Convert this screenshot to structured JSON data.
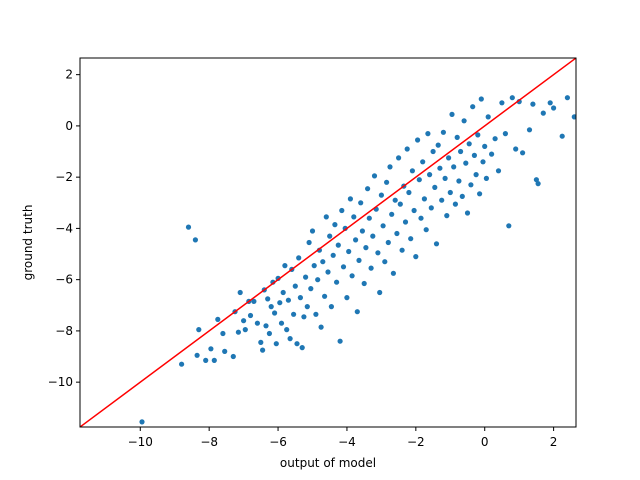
{
  "chart_data": {
    "type": "scatter",
    "title": "",
    "xlabel": "output of model",
    "ylabel": "ground truth",
    "xlim": [
      -11.75,
      2.65
    ],
    "ylim": [
      -11.75,
      2.65
    ],
    "xticks": [
      -10,
      -8,
      -6,
      -4,
      -2,
      0,
      2
    ],
    "yticks": [
      -10,
      -8,
      -6,
      -4,
      -2,
      0,
      2
    ],
    "xtick_labels": [
      "−10",
      "−8",
      "−6",
      "−4",
      "−2",
      "0",
      "2"
    ],
    "ytick_labels": [
      "−10",
      "−8",
      "−6",
      "−4",
      "−2",
      "0",
      "2"
    ],
    "grid": false,
    "legend": "none",
    "point_color": "#1f77b4",
    "line_color": "#ff0000",
    "reference_line": {
      "type": "identity",
      "from": [
        -11.75,
        -11.75
      ],
      "to": [
        2.65,
        2.65
      ]
    },
    "series": [
      {
        "points": [
          [
            -9.95,
            -11.55
          ],
          [
            -8.8,
            -9.3
          ],
          [
            -8.6,
            -3.95
          ],
          [
            -8.4,
            -4.45
          ],
          [
            -8.35,
            -8.95
          ],
          [
            -8.3,
            -7.95
          ],
          [
            -8.1,
            -9.15
          ],
          [
            -7.95,
            -8.7
          ],
          [
            -7.85,
            -9.15
          ],
          [
            -7.75,
            -7.55
          ],
          [
            -7.6,
            -8.1
          ],
          [
            -7.55,
            -8.8
          ],
          [
            -7.3,
            -9.0
          ],
          [
            -7.25,
            -7.25
          ],
          [
            -7.15,
            -8.05
          ],
          [
            -7.1,
            -6.5
          ],
          [
            -7.0,
            -7.6
          ],
          [
            -6.95,
            -7.95
          ],
          [
            -6.85,
            -6.85
          ],
          [
            -6.8,
            -7.4
          ],
          [
            -6.7,
            -6.85
          ],
          [
            -6.6,
            -7.7
          ],
          [
            -6.5,
            -8.45
          ],
          [
            -6.45,
            -8.75
          ],
          [
            -6.4,
            -6.4
          ],
          [
            -6.35,
            -7.8
          ],
          [
            -6.3,
            -6.75
          ],
          [
            -6.25,
            -8.1
          ],
          [
            -6.2,
            -7.05
          ],
          [
            -6.15,
            -6.1
          ],
          [
            -6.1,
            -7.3
          ],
          [
            -6.05,
            -8.5
          ],
          [
            -6.0,
            -5.95
          ],
          [
            -5.95,
            -6.9
          ],
          [
            -5.9,
            -7.7
          ],
          [
            -5.85,
            -6.5
          ],
          [
            -5.8,
            -5.45
          ],
          [
            -5.75,
            -7.95
          ],
          [
            -5.7,
            -6.8
          ],
          [
            -5.65,
            -8.3
          ],
          [
            -5.6,
            -5.6
          ],
          [
            -5.55,
            -7.35
          ],
          [
            -5.5,
            -6.25
          ],
          [
            -5.45,
            -8.5
          ],
          [
            -5.4,
            -5.15
          ],
          [
            -5.35,
            -6.7
          ],
          [
            -5.3,
            -8.65
          ],
          [
            -5.25,
            -7.45
          ],
          [
            -5.2,
            -5.9
          ],
          [
            -5.15,
            -7.05
          ],
          [
            -5.1,
            -4.55
          ],
          [
            -5.05,
            -6.35
          ],
          [
            -5.0,
            -4.1
          ],
          [
            -4.95,
            -5.45
          ],
          [
            -4.9,
            -7.35
          ],
          [
            -4.85,
            -6.0
          ],
          [
            -4.8,
            -4.85
          ],
          [
            -4.75,
            -7.85
          ],
          [
            -4.7,
            -5.3
          ],
          [
            -4.65,
            -6.65
          ],
          [
            -4.6,
            -3.55
          ],
          [
            -4.55,
            -5.7
          ],
          [
            -4.5,
            -4.3
          ],
          [
            -4.45,
            -7.05
          ],
          [
            -4.4,
            -5.05
          ],
          [
            -4.35,
            -3.85
          ],
          [
            -4.3,
            -6.1
          ],
          [
            -4.25,
            -4.65
          ],
          [
            -4.2,
            -8.4
          ],
          [
            -4.15,
            -3.3
          ],
          [
            -4.1,
            -5.5
          ],
          [
            -4.05,
            -4.0
          ],
          [
            -4.0,
            -6.7
          ],
          [
            -3.95,
            -4.9
          ],
          [
            -3.9,
            -2.85
          ],
          [
            -3.85,
            -5.85
          ],
          [
            -3.8,
            -3.55
          ],
          [
            -3.75,
            -4.45
          ],
          [
            -3.7,
            -7.25
          ],
          [
            -3.65,
            -5.25
          ],
          [
            -3.6,
            -3.0
          ],
          [
            -3.55,
            -4.1
          ],
          [
            -3.5,
            -6.15
          ],
          [
            -3.45,
            -4.75
          ],
          [
            -3.4,
            -2.45
          ],
          [
            -3.35,
            -3.6
          ],
          [
            -3.3,
            -5.55
          ],
          [
            -3.25,
            -4.3
          ],
          [
            -3.2,
            -1.95
          ],
          [
            -3.15,
            -3.25
          ],
          [
            -3.1,
            -4.95
          ],
          [
            -3.05,
            -6.5
          ],
          [
            -3.0,
            -2.7
          ],
          [
            -2.95,
            -3.9
          ],
          [
            -2.9,
            -5.3
          ],
          [
            -2.85,
            -2.2
          ],
          [
            -2.8,
            -4.55
          ],
          [
            -2.75,
            -1.6
          ],
          [
            -2.7,
            -3.45
          ],
          [
            -2.65,
            -5.75
          ],
          [
            -2.6,
            -2.9
          ],
          [
            -2.55,
            -4.2
          ],
          [
            -2.5,
            -1.25
          ],
          [
            -2.45,
            -3.05
          ],
          [
            -2.4,
            -4.85
          ],
          [
            -2.35,
            -2.35
          ],
          [
            -2.3,
            -3.75
          ],
          [
            -2.25,
            -0.9
          ],
          [
            -2.2,
            -2.6
          ],
          [
            -2.15,
            -4.4
          ],
          [
            -2.1,
            -1.75
          ],
          [
            -2.05,
            -3.3
          ],
          [
            -2.0,
            -5.1
          ],
          [
            -1.95,
            -0.55
          ],
          [
            -1.9,
            -2.1
          ],
          [
            -1.85,
            -3.6
          ],
          [
            -1.8,
            -1.4
          ],
          [
            -1.75,
            -2.85
          ],
          [
            -1.7,
            -4.05
          ],
          [
            -1.65,
            -0.3
          ],
          [
            -1.6,
            -1.9
          ],
          [
            -1.55,
            -3.2
          ],
          [
            -1.5,
            -1.0
          ],
          [
            -1.45,
            -2.4
          ],
          [
            -1.4,
            -4.6
          ],
          [
            -1.35,
            -0.75
          ],
          [
            -1.3,
            -1.65
          ],
          [
            -1.25,
            -2.9
          ],
          [
            -1.2,
            -0.25
          ],
          [
            -1.15,
            -2.05
          ],
          [
            -1.1,
            -3.5
          ],
          [
            -1.05,
            -1.25
          ],
          [
            -1.0,
            -2.6
          ],
          [
            -0.95,
            0.45
          ],
          [
            -0.9,
            -1.6
          ],
          [
            -0.85,
            -3.05
          ],
          [
            -0.8,
            -0.45
          ],
          [
            -0.75,
            -2.15
          ],
          [
            -0.7,
            -1.0
          ],
          [
            -0.65,
            -2.75
          ],
          [
            -0.6,
            0.2
          ],
          [
            -0.55,
            -1.45
          ],
          [
            -0.5,
            -3.4
          ],
          [
            -0.45,
            -0.7
          ],
          [
            -0.4,
            -2.3
          ],
          [
            -0.35,
            0.75
          ],
          [
            -0.3,
            -1.15
          ],
          [
            -0.25,
            -1.9
          ],
          [
            -0.2,
            -0.35
          ],
          [
            -0.15,
            -2.65
          ],
          [
            -0.1,
            1.05
          ],
          [
            -0.05,
            -1.4
          ],
          [
            0.0,
            -0.8
          ],
          [
            0.05,
            -2.05
          ],
          [
            0.1,
            0.35
          ],
          [
            0.2,
            -1.1
          ],
          [
            0.3,
            -0.5
          ],
          [
            0.4,
            -1.75
          ],
          [
            0.5,
            0.9
          ],
          [
            0.6,
            -0.3
          ],
          [
            0.7,
            -3.9
          ],
          [
            0.8,
            1.1
          ],
          [
            0.9,
            -0.9
          ],
          [
            1.0,
            0.95
          ],
          [
            1.1,
            -1.05
          ],
          [
            1.3,
            -0.15
          ],
          [
            1.4,
            0.85
          ],
          [
            1.5,
            -2.1
          ],
          [
            1.55,
            -2.25
          ],
          [
            1.7,
            0.5
          ],
          [
            1.9,
            0.9
          ],
          [
            2.0,
            0.7
          ],
          [
            2.25,
            -0.4
          ],
          [
            2.4,
            1.1
          ],
          [
            2.6,
            0.35
          ]
        ]
      }
    ]
  }
}
